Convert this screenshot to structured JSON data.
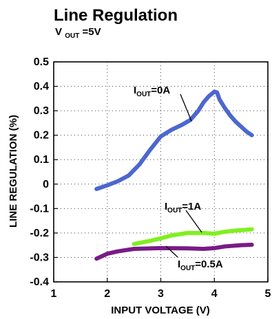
{
  "chart_data": {
    "type": "line",
    "title": "Line Regulation",
    "subtitle": {
      "base": "V",
      "sub": "OUT",
      "rest": "=5V"
    },
    "xlabel": "INPUT VOLTAGE (V)",
    "ylabel": "LINE REGULATION (%)",
    "xlim": [
      1,
      5
    ],
    "ylim": [
      -0.4,
      0.5
    ],
    "x_ticks": [
      1,
      2,
      3,
      4,
      5
    ],
    "y_ticks": [
      0.5,
      0.4,
      0.3,
      0.2,
      0.1,
      0,
      -0.1,
      -0.2,
      -0.3,
      -0.4
    ],
    "grid": true,
    "series": [
      {
        "id": "iout_0a",
        "label": {
          "base": "I",
          "sub": "OUT",
          "rest": "=0A"
        },
        "color": "#4c67cf",
        "x": [
          1.8,
          2.0,
          2.2,
          2.4,
          2.6,
          2.8,
          3.0,
          3.2,
          3.4,
          3.55,
          3.7,
          3.8,
          3.9,
          4.0,
          4.05,
          4.1,
          4.2,
          4.3,
          4.4,
          4.5,
          4.6,
          4.7
        ],
        "y": [
          -0.02,
          -0.005,
          0.012,
          0.035,
          0.08,
          0.14,
          0.195,
          0.222,
          0.243,
          0.262,
          0.3,
          0.335,
          0.36,
          0.378,
          0.375,
          0.345,
          0.31,
          0.28,
          0.255,
          0.235,
          0.215,
          0.2
        ]
      },
      {
        "id": "iout_1a",
        "label": {
          "base": "I",
          "sub": "OUT",
          "rest": "=1A"
        },
        "color": "#80f020",
        "x": [
          2.5,
          2.8,
          3.0,
          3.2,
          3.5,
          3.8,
          4.0,
          4.2,
          4.4,
          4.6,
          4.7
        ],
        "y": [
          -0.245,
          -0.232,
          -0.222,
          -0.21,
          -0.2,
          -0.2,
          -0.203,
          -0.195,
          -0.19,
          -0.187,
          -0.185
        ]
      },
      {
        "id": "iout_05a",
        "label": {
          "base": "I",
          "sub": "OUT",
          "rest": "=0.5A"
        },
        "color": "#7a1b86",
        "x": [
          1.8,
          2.0,
          2.2,
          2.5,
          3.0,
          3.5,
          3.8,
          4.0,
          4.2,
          4.5,
          4.7
        ],
        "y": [
          -0.305,
          -0.285,
          -0.275,
          -0.265,
          -0.262,
          -0.263,
          -0.265,
          -0.262,
          -0.255,
          -0.25,
          -0.248
        ]
      }
    ]
  }
}
